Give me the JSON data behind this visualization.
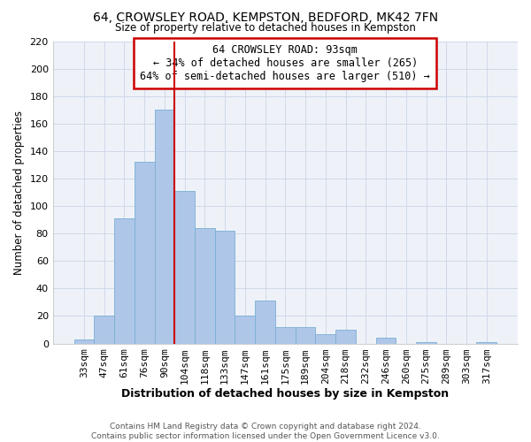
{
  "title": "64, CROWSLEY ROAD, KEMPSTON, BEDFORD, MK42 7FN",
  "subtitle": "Size of property relative to detached houses in Kempston",
  "xlabel": "Distribution of detached houses by size in Kempston",
  "ylabel": "Number of detached properties",
  "bar_labels": [
    "33sqm",
    "47sqm",
    "61sqm",
    "76sqm",
    "90sqm",
    "104sqm",
    "118sqm",
    "133sqm",
    "147sqm",
    "161sqm",
    "175sqm",
    "189sqm",
    "204sqm",
    "218sqm",
    "232sqm",
    "246sqm",
    "260sqm",
    "275sqm",
    "289sqm",
    "303sqm",
    "317sqm"
  ],
  "bar_heights": [
    3,
    20,
    91,
    132,
    170,
    111,
    84,
    82,
    20,
    31,
    12,
    12,
    7,
    10,
    0,
    4,
    0,
    1,
    0,
    0,
    1
  ],
  "bar_color": "#aec6e8",
  "bar_edge_color": "#7aafd4",
  "vline_x": 4.5,
  "vline_color": "#cc0000",
  "ylim": [
    0,
    220
  ],
  "yticks": [
    0,
    20,
    40,
    60,
    80,
    100,
    120,
    140,
    160,
    180,
    200,
    220
  ],
  "annotation_title": "64 CROWSLEY ROAD: 93sqm",
  "annotation_line1": "← 34% of detached houses are smaller (265)",
  "annotation_line2": "64% of semi-detached houses are larger (510) →",
  "annotation_box_color": "#ffffff",
  "annotation_box_edge": "#cc0000",
  "footer1": "Contains HM Land Registry data © Crown copyright and database right 2024.",
  "footer2": "Contains public sector information licensed under the Open Government Licence v3.0.",
  "background_color": "#ffffff",
  "grid_color": "#d0d8e8",
  "axes_bg_color": "#eef2f8"
}
